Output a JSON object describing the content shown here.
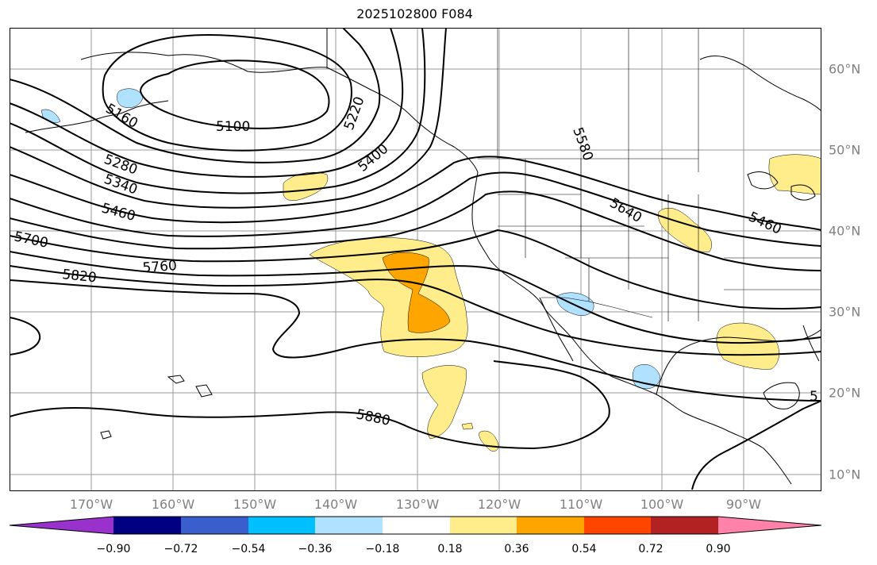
{
  "title": "2025102800 F084",
  "colors": {
    "land_outline": "#000000",
    "gridline": "#999999",
    "contour": "#000000",
    "axis_label": "#808080"
  },
  "latitude_labels": [
    "60°N",
    "50°N",
    "40°N",
    "30°N",
    "20°N",
    "10°N"
  ],
  "longitude_labels": [
    "170°W",
    "160°W",
    "150°W",
    "140°W",
    "130°W",
    "120°W",
    "110°W",
    "100°W",
    "90°W"
  ],
  "contour_labels": [
    "5100",
    "5160",
    "5220",
    "5280",
    "5340",
    "5400",
    "5460",
    "5460",
    "5580",
    "5640",
    "5700",
    "5760",
    "5820",
    "5880",
    "5"
  ],
  "colorbar": {
    "extend": "both",
    "ticks": [
      "−0.90",
      "−0.72",
      "−0.54",
      "−0.36",
      "−0.18",
      "0.18",
      "0.36",
      "0.54",
      "0.72",
      "0.90"
    ],
    "bins": [
      {
        "color": "#9932cc"
      },
      {
        "color": "#000080"
      },
      {
        "color": "#3a5fcd"
      },
      {
        "color": "#00bfff"
      },
      {
        "color": "#b0e2ff"
      },
      {
        "color": "#ffffff"
      },
      {
        "color": "#ffec8b"
      },
      {
        "color": "#ffa500"
      },
      {
        "color": "#ff4500"
      },
      {
        "color": "#b22222"
      },
      {
        "color": "#ff82ab"
      }
    ]
  },
  "shaded_regions": [
    {
      "level": "0.18 to 0.36",
      "color": "#ffec8b"
    },
    {
      "level": "0.36 to 0.54",
      "color": "#ffa500"
    },
    {
      "level": "−0.36 to −0.18",
      "color": "#b0e2ff"
    }
  ]
}
